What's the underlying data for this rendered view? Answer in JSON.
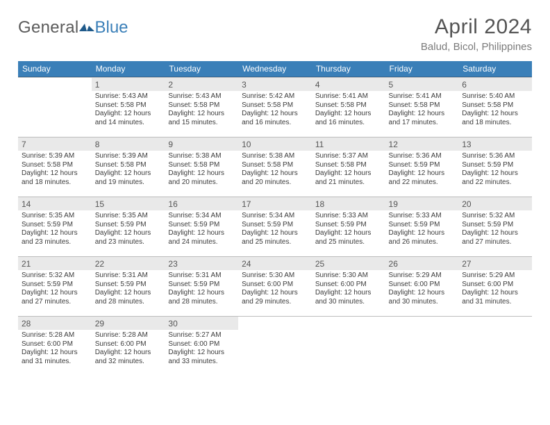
{
  "logo": {
    "part1": "General",
    "part2": "Blue",
    "icon_color": "#1f5a8a"
  },
  "header": {
    "title": "April 2024",
    "location": "Balud, Bicol, Philippines"
  },
  "colors": {
    "header_bg": "#3a7fb8",
    "header_fg": "#ffffff",
    "daynum_bg": "#e9e9e9",
    "daynum_fg": "#555555",
    "text": "#3b3b3b",
    "title_fg": "#545454",
    "subtitle_fg": "#7a7a7a",
    "logo_gray": "#5a5a5a",
    "logo_blue": "#3a7fb8",
    "border": "#bcbcbc"
  },
  "weekdays": [
    "Sunday",
    "Monday",
    "Tuesday",
    "Wednesday",
    "Thursday",
    "Friday",
    "Saturday"
  ],
  "leading_blanks": 0,
  "days": [
    {
      "n": "",
      "sr": "",
      "ss": "",
      "dl": ""
    },
    {
      "n": "1",
      "sr": "5:43 AM",
      "ss": "5:58 PM",
      "dl": "12 hours and 14 minutes."
    },
    {
      "n": "2",
      "sr": "5:43 AM",
      "ss": "5:58 PM",
      "dl": "12 hours and 15 minutes."
    },
    {
      "n": "3",
      "sr": "5:42 AM",
      "ss": "5:58 PM",
      "dl": "12 hours and 16 minutes."
    },
    {
      "n": "4",
      "sr": "5:41 AM",
      "ss": "5:58 PM",
      "dl": "12 hours and 16 minutes."
    },
    {
      "n": "5",
      "sr": "5:41 AM",
      "ss": "5:58 PM",
      "dl": "12 hours and 17 minutes."
    },
    {
      "n": "6",
      "sr": "5:40 AM",
      "ss": "5:58 PM",
      "dl": "12 hours and 18 minutes."
    },
    {
      "n": "7",
      "sr": "5:39 AM",
      "ss": "5:58 PM",
      "dl": "12 hours and 18 minutes."
    },
    {
      "n": "8",
      "sr": "5:39 AM",
      "ss": "5:58 PM",
      "dl": "12 hours and 19 minutes."
    },
    {
      "n": "9",
      "sr": "5:38 AM",
      "ss": "5:58 PM",
      "dl": "12 hours and 20 minutes."
    },
    {
      "n": "10",
      "sr": "5:38 AM",
      "ss": "5:58 PM",
      "dl": "12 hours and 20 minutes."
    },
    {
      "n": "11",
      "sr": "5:37 AM",
      "ss": "5:58 PM",
      "dl": "12 hours and 21 minutes."
    },
    {
      "n": "12",
      "sr": "5:36 AM",
      "ss": "5:59 PM",
      "dl": "12 hours and 22 minutes."
    },
    {
      "n": "13",
      "sr": "5:36 AM",
      "ss": "5:59 PM",
      "dl": "12 hours and 22 minutes."
    },
    {
      "n": "14",
      "sr": "5:35 AM",
      "ss": "5:59 PM",
      "dl": "12 hours and 23 minutes."
    },
    {
      "n": "15",
      "sr": "5:35 AM",
      "ss": "5:59 PM",
      "dl": "12 hours and 23 minutes."
    },
    {
      "n": "16",
      "sr": "5:34 AM",
      "ss": "5:59 PM",
      "dl": "12 hours and 24 minutes."
    },
    {
      "n": "17",
      "sr": "5:34 AM",
      "ss": "5:59 PM",
      "dl": "12 hours and 25 minutes."
    },
    {
      "n": "18",
      "sr": "5:33 AM",
      "ss": "5:59 PM",
      "dl": "12 hours and 25 minutes."
    },
    {
      "n": "19",
      "sr": "5:33 AM",
      "ss": "5:59 PM",
      "dl": "12 hours and 26 minutes."
    },
    {
      "n": "20",
      "sr": "5:32 AM",
      "ss": "5:59 PM",
      "dl": "12 hours and 27 minutes."
    },
    {
      "n": "21",
      "sr": "5:32 AM",
      "ss": "5:59 PM",
      "dl": "12 hours and 27 minutes."
    },
    {
      "n": "22",
      "sr": "5:31 AM",
      "ss": "5:59 PM",
      "dl": "12 hours and 28 minutes."
    },
    {
      "n": "23",
      "sr": "5:31 AM",
      "ss": "5:59 PM",
      "dl": "12 hours and 28 minutes."
    },
    {
      "n": "24",
      "sr": "5:30 AM",
      "ss": "6:00 PM",
      "dl": "12 hours and 29 minutes."
    },
    {
      "n": "25",
      "sr": "5:30 AM",
      "ss": "6:00 PM",
      "dl": "12 hours and 30 minutes."
    },
    {
      "n": "26",
      "sr": "5:29 AM",
      "ss": "6:00 PM",
      "dl": "12 hours and 30 minutes."
    },
    {
      "n": "27",
      "sr": "5:29 AM",
      "ss": "6:00 PM",
      "dl": "12 hours and 31 minutes."
    },
    {
      "n": "28",
      "sr": "5:28 AM",
      "ss": "6:00 PM",
      "dl": "12 hours and 31 minutes."
    },
    {
      "n": "29",
      "sr": "5:28 AM",
      "ss": "6:00 PM",
      "dl": "12 hours and 32 minutes."
    },
    {
      "n": "30",
      "sr": "5:27 AM",
      "ss": "6:00 PM",
      "dl": "12 hours and 33 minutes."
    }
  ],
  "labels": {
    "sunrise": "Sunrise:",
    "sunset": "Sunset:",
    "daylight": "Daylight:"
  }
}
